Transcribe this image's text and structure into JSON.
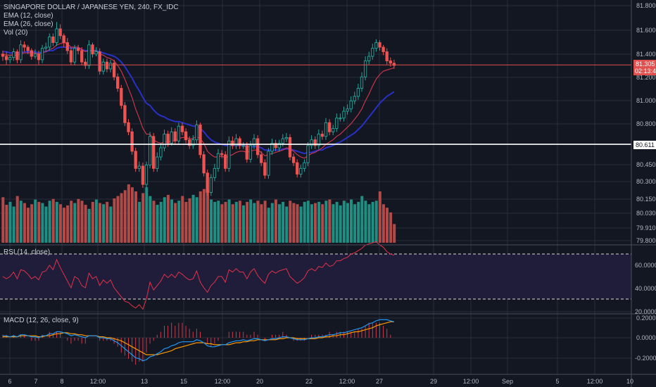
{
  "colors": {
    "background": "#131722",
    "grid": "#2a2e39",
    "up": "#26a69a",
    "down": "#ef5350",
    "vol_up": "#1f8f84",
    "vol_down": "#b24a48",
    "ema12": "#e53950",
    "ema26": "#2830c8",
    "rsi": "#e5304a",
    "macd": "#2196f3",
    "signal": "#ff9800",
    "hist": "#e53950",
    "price_line": "#e0504e",
    "support_line": "#ffffff"
  },
  "header": {
    "title": "SINGAPORE DOLLAR / JAPANESE YEN, 240, FX_IDC",
    "indicators": [
      "EMA (12, close)",
      "EMA (26, close)",
      "Vol (20)"
    ]
  },
  "rsi_panel": {
    "label": "RSI (14, close)",
    "ticks": [
      "60.0000",
      "40.0000",
      "20.0000"
    ],
    "upper_band": 70,
    "lower_band": 30
  },
  "macd_panel": {
    "label": "MACD (12, 26, close, 9)",
    "ticks": [
      "0.2000",
      "0.0000",
      "-0.2000"
    ]
  },
  "price_axis": {
    "ticks": [
      "81.800",
      "81.600",
      "81.400",
      "81.200",
      "81.000",
      "80.800",
      "80.450",
      "80.300",
      "80.150",
      "80.030",
      "79.910",
      "79.800"
    ],
    "current_price": "81.305",
    "countdown": "02:13:40",
    "support_level": "80.611"
  },
  "time_axis": {
    "labels": [
      "6",
      "7",
      "8",
      "12:00",
      "13",
      "15",
      "12:00",
      "20",
      "22",
      "12:00",
      "27",
      "29",
      "12:00",
      "Sep",
      "5",
      "12:00",
      "10"
    ]
  },
  "chart_data": {
    "type": "candlestick",
    "title": "SINGAPORE DOLLAR / JAPANESE YEN, 240, FX_IDC",
    "interval": "240",
    "ylim": [
      79.75,
      81.86
    ],
    "candles": {
      "open": [
        81.4,
        81.38,
        81.35,
        81.37,
        81.42,
        81.35,
        81.48,
        81.46,
        81.43,
        81.38,
        81.4,
        81.35,
        81.45,
        81.46,
        81.55,
        81.5,
        81.62,
        81.56,
        81.5,
        81.43,
        81.33,
        81.45,
        81.43,
        81.33,
        81.3,
        81.48,
        81.4,
        81.42,
        81.25,
        81.33,
        81.27,
        81.32,
        81.2,
        81.1,
        80.95,
        80.8,
        80.72,
        80.55,
        80.4,
        80.42,
        80.26,
        80.43,
        80.68,
        80.4,
        80.5,
        80.58,
        80.7,
        80.62,
        80.72,
        80.64,
        80.77,
        80.72,
        80.65,
        80.6,
        80.65,
        80.78,
        80.52,
        80.36,
        80.19,
        80.32,
        80.4,
        80.53,
        80.52,
        80.4,
        80.64,
        80.6,
        80.66,
        80.6,
        80.6,
        80.48,
        80.6,
        80.66,
        80.52,
        80.45,
        80.34,
        80.55,
        80.62,
        80.58,
        80.62,
        80.66,
        80.67,
        80.5,
        80.45,
        80.35,
        80.4,
        80.45,
        80.6,
        80.65,
        80.6,
        80.7,
        80.68,
        80.8,
        80.72,
        80.75,
        80.84,
        80.84,
        80.9,
        80.92,
        80.99,
        81.03,
        81.1,
        81.2,
        81.34,
        81.38,
        81.45,
        81.5,
        81.46,
        81.42,
        81.34,
        81.32
      ],
      "close": [
        81.38,
        81.35,
        81.37,
        81.42,
        81.35,
        81.48,
        81.46,
        81.43,
        81.38,
        81.4,
        81.35,
        81.45,
        81.46,
        81.55,
        81.5,
        81.62,
        81.56,
        81.5,
        81.43,
        81.33,
        81.45,
        81.43,
        81.33,
        81.3,
        81.48,
        81.4,
        81.42,
        81.25,
        81.33,
        81.27,
        81.32,
        81.2,
        81.1,
        80.95,
        80.8,
        80.72,
        80.55,
        80.4,
        80.42,
        80.26,
        80.43,
        80.68,
        80.4,
        80.5,
        80.58,
        80.7,
        80.62,
        80.72,
        80.64,
        80.77,
        80.72,
        80.65,
        80.6,
        80.65,
        80.78,
        80.52,
        80.36,
        80.19,
        80.32,
        80.4,
        80.53,
        80.52,
        80.4,
        80.64,
        80.6,
        80.66,
        80.6,
        80.6,
        80.48,
        80.6,
        80.66,
        80.52,
        80.45,
        80.34,
        80.55,
        80.62,
        80.58,
        80.62,
        80.66,
        80.67,
        80.5,
        80.45,
        80.35,
        80.4,
        80.45,
        80.6,
        80.65,
        80.6,
        80.7,
        80.68,
        80.8,
        80.72,
        80.75,
        80.84,
        80.84,
        80.9,
        80.92,
        80.99,
        81.03,
        81.1,
        81.2,
        81.34,
        81.38,
        81.45,
        81.5,
        81.46,
        81.42,
        81.34,
        81.32,
        81.3
      ],
      "high": [
        81.43,
        81.42,
        81.39,
        81.45,
        81.44,
        81.52,
        81.51,
        81.48,
        81.45,
        81.44,
        81.43,
        81.48,
        81.5,
        81.58,
        81.58,
        81.68,
        81.66,
        81.58,
        81.54,
        81.46,
        81.48,
        81.48,
        81.46,
        81.36,
        81.52,
        81.5,
        81.46,
        81.45,
        81.36,
        81.36,
        81.35,
        81.35,
        81.23,
        81.13,
        80.98,
        80.83,
        80.75,
        80.58,
        80.46,
        80.45,
        80.46,
        80.72,
        80.71,
        80.54,
        80.62,
        80.74,
        80.73,
        80.76,
        80.75,
        80.8,
        80.8,
        80.75,
        80.68,
        80.69,
        80.82,
        80.8,
        80.55,
        80.39,
        80.35,
        80.44,
        80.57,
        80.56,
        80.55,
        80.68,
        80.68,
        80.7,
        80.68,
        80.63,
        80.63,
        80.64,
        80.7,
        80.69,
        80.55,
        80.48,
        80.58,
        80.66,
        80.65,
        80.65,
        80.7,
        80.71,
        80.7,
        80.53,
        80.48,
        80.43,
        80.48,
        80.63,
        80.69,
        80.68,
        80.74,
        80.73,
        80.84,
        80.83,
        80.78,
        80.88,
        80.88,
        80.94,
        80.96,
        81.03,
        81.07,
        81.14,
        81.24,
        81.38,
        81.42,
        81.49,
        81.53,
        81.52,
        81.48,
        81.45,
        81.37,
        81.35
      ],
      "low": [
        81.34,
        81.31,
        81.32,
        81.34,
        81.32,
        81.32,
        81.42,
        81.4,
        81.35,
        81.36,
        81.31,
        81.32,
        81.42,
        81.43,
        81.47,
        81.47,
        81.53,
        81.46,
        81.4,
        81.3,
        81.3,
        81.4,
        81.3,
        81.27,
        81.27,
        81.37,
        81.38,
        81.22,
        81.22,
        81.24,
        81.24,
        81.17,
        81.07,
        80.92,
        80.77,
        80.69,
        80.52,
        80.37,
        80.37,
        80.23,
        80.23,
        80.4,
        80.37,
        80.37,
        80.47,
        80.55,
        80.59,
        80.6,
        80.61,
        80.61,
        80.69,
        80.62,
        80.57,
        80.57,
        80.62,
        80.49,
        80.33,
        80.16,
        80.16,
        80.29,
        80.37,
        80.49,
        80.37,
        80.37,
        80.57,
        80.57,
        80.57,
        80.57,
        80.45,
        80.45,
        80.57,
        80.49,
        80.42,
        80.31,
        80.31,
        80.52,
        80.55,
        80.55,
        80.59,
        80.63,
        80.47,
        80.42,
        80.32,
        80.32,
        80.37,
        80.42,
        80.57,
        80.57,
        80.57,
        80.65,
        80.65,
        80.69,
        80.69,
        80.72,
        80.81,
        80.81,
        80.87,
        80.89,
        80.96,
        81.0,
        81.07,
        81.17,
        81.31,
        81.35,
        81.42,
        81.43,
        81.39,
        81.31,
        81.29,
        81.27
      ]
    },
    "volume": [
      0.78,
      0.65,
      0.7,
      0.62,
      0.8,
      0.72,
      0.68,
      0.6,
      0.66,
      0.74,
      0.7,
      0.68,
      0.62,
      0.72,
      0.75,
      0.7,
      0.66,
      0.6,
      0.64,
      0.72,
      0.68,
      0.75,
      0.72,
      0.65,
      0.58,
      0.7,
      0.74,
      0.68,
      0.66,
      0.7,
      0.62,
      0.76,
      0.8,
      0.85,
      0.9,
      1.0,
      0.95,
      0.88,
      0.7,
      0.85,
      0.95,
      0.8,
      0.72,
      0.65,
      0.7,
      0.78,
      0.82,
      0.74,
      0.68,
      0.72,
      0.8,
      0.7,
      0.76,
      0.82,
      0.78,
      0.88,
      0.92,
      0.9,
      0.74,
      0.7,
      0.72,
      0.66,
      0.7,
      0.74,
      0.66,
      0.7,
      0.72,
      0.64,
      0.7,
      0.74,
      0.68,
      0.72,
      0.66,
      0.72,
      0.6,
      0.68,
      0.74,
      0.66,
      0.7,
      0.62,
      0.72,
      0.68,
      0.66,
      0.62,
      0.7,
      0.72,
      0.66,
      0.68,
      0.7,
      0.66,
      0.72,
      0.74,
      0.66,
      0.7,
      0.64,
      0.72,
      0.68,
      0.74,
      0.66,
      0.7,
      0.8,
      0.72,
      0.66,
      0.7,
      0.72,
      0.88,
      0.66,
      0.6,
      0.52,
      0.32
    ],
    "rsi": [
      50,
      48,
      50,
      54,
      48,
      56,
      55,
      52,
      48,
      50,
      47,
      54,
      55,
      60,
      56,
      65,
      58,
      52,
      46,
      40,
      50,
      48,
      42,
      40,
      53,
      48,
      50,
      42,
      47,
      44,
      47,
      40,
      36,
      32,
      28,
      27,
      24,
      22,
      25,
      21,
      30,
      45,
      38,
      42,
      46,
      52,
      49,
      52,
      49,
      54,
      52,
      49,
      47,
      48,
      55,
      45,
      40,
      36,
      42,
      45,
      50,
      50,
      45,
      56,
      54,
      57,
      54,
      54,
      48,
      54,
      57,
      51,
      47,
      44,
      52,
      55,
      53,
      55,
      56,
      57,
      50,
      47,
      44,
      46,
      49,
      55,
      57,
      55,
      59,
      58,
      62,
      59,
      60,
      64,
      64,
      66,
      67,
      70,
      71,
      73,
      75,
      78,
      79,
      80,
      81,
      78,
      76,
      72,
      70,
      69
    ],
    "macd": [
      0.02,
      0.02,
      0.01,
      0.02,
      0.01,
      0.03,
      0.03,
      0.02,
      0.01,
      0.01,
      0.0,
      0.02,
      0.02,
      0.04,
      0.04,
      0.06,
      0.06,
      0.05,
      0.04,
      0.02,
      0.03,
      0.02,
      0.01,
      0.0,
      0.02,
      0.02,
      0.02,
      0.0,
      0.0,
      -0.01,
      -0.01,
      -0.03,
      -0.05,
      -0.08,
      -0.11,
      -0.14,
      -0.17,
      -0.2,
      -0.21,
      -0.23,
      -0.22,
      -0.19,
      -0.18,
      -0.16,
      -0.14,
      -0.11,
      -0.1,
      -0.08,
      -0.07,
      -0.05,
      -0.04,
      -0.04,
      -0.04,
      -0.04,
      -0.02,
      -0.03,
      -0.05,
      -0.08,
      -0.09,
      -0.09,
      -0.08,
      -0.07,
      -0.07,
      -0.05,
      -0.04,
      -0.03,
      -0.03,
      -0.02,
      -0.03,
      -0.02,
      -0.01,
      -0.01,
      -0.02,
      -0.03,
      -0.02,
      -0.01,
      -0.01,
      0.0,
      0.01,
      0.01,
      0.0,
      -0.01,
      -0.02,
      -0.02,
      -0.02,
      -0.01,
      0.0,
      0.0,
      0.01,
      0.01,
      0.02,
      0.03,
      0.03,
      0.04,
      0.05,
      0.05,
      0.06,
      0.07,
      0.08,
      0.09,
      0.1,
      0.12,
      0.14,
      0.15,
      0.17,
      0.18,
      0.18,
      0.18,
      0.17,
      0.16
    ],
    "signal": [
      0.01,
      0.01,
      0.01,
      0.01,
      0.01,
      0.02,
      0.02,
      0.02,
      0.02,
      0.02,
      0.01,
      0.01,
      0.02,
      0.02,
      0.03,
      0.04,
      0.04,
      0.05,
      0.05,
      0.04,
      0.04,
      0.03,
      0.03,
      0.02,
      0.02,
      0.02,
      0.02,
      0.01,
      0.01,
      0.0,
      0.0,
      -0.01,
      -0.02,
      -0.03,
      -0.05,
      -0.07,
      -0.09,
      -0.11,
      -0.13,
      -0.15,
      -0.17,
      -0.17,
      -0.17,
      -0.17,
      -0.16,
      -0.15,
      -0.14,
      -0.13,
      -0.11,
      -0.1,
      -0.09,
      -0.08,
      -0.07,
      -0.06,
      -0.05,
      -0.05,
      -0.05,
      -0.06,
      -0.06,
      -0.07,
      -0.07,
      -0.07,
      -0.07,
      -0.07,
      -0.06,
      -0.05,
      -0.05,
      -0.04,
      -0.04,
      -0.03,
      -0.03,
      -0.02,
      -0.02,
      -0.02,
      -0.02,
      -0.02,
      -0.02,
      -0.01,
      -0.01,
      0.0,
      0.0,
      0.0,
      -0.01,
      -0.01,
      -0.01,
      -0.01,
      -0.01,
      -0.01,
      0.0,
      0.0,
      0.01,
      0.01,
      0.02,
      0.02,
      0.03,
      0.03,
      0.04,
      0.05,
      0.06,
      0.06,
      0.07,
      0.08,
      0.09,
      0.1,
      0.12,
      0.13,
      0.14,
      0.15,
      0.16,
      0.16
    ],
    "ema12": [
      81.4,
      81.39,
      81.39,
      81.39,
      81.39,
      81.4,
      81.41,
      81.41,
      81.41,
      81.41,
      81.4,
      81.41,
      81.42,
      81.44,
      81.45,
      81.48,
      81.49,
      81.5,
      81.49,
      81.46,
      81.46,
      81.46,
      81.44,
      81.42,
      81.43,
      81.43,
      81.43,
      81.4,
      81.39,
      81.37,
      81.36,
      81.34,
      81.3,
      81.25,
      81.18,
      81.1,
      81.02,
      80.92,
      80.84,
      80.75,
      80.7,
      80.7,
      80.65,
      80.63,
      80.62,
      80.63,
      80.63,
      80.64,
      80.64,
      80.66,
      80.67,
      80.67,
      80.66,
      80.66,
      80.68,
      80.66,
      80.62,
      80.55,
      80.52,
      80.5,
      80.5,
      80.51,
      80.49,
      80.51,
      80.52,
      80.54,
      80.55,
      80.55,
      80.54,
      80.55,
      80.56,
      80.56,
      80.54,
      80.51,
      80.52,
      80.53,
      80.54,
      80.55,
      80.56,
      80.58,
      80.57,
      80.55,
      80.52,
      80.5,
      80.49,
      80.51,
      80.53,
      80.54,
      80.56,
      80.58,
      80.61,
      80.63,
      80.65,
      80.68,
      80.7,
      80.73,
      80.76,
      80.79,
      80.83,
      80.87,
      80.92,
      80.99,
      81.05,
      81.12,
      81.18,
      81.22,
      81.25,
      81.26,
      81.27,
      81.28
    ],
    "ema26": [
      81.42,
      81.42,
      81.41,
      81.41,
      81.41,
      81.41,
      81.42,
      81.42,
      81.42,
      81.42,
      81.41,
      81.42,
      81.42,
      81.43,
      81.43,
      81.45,
      81.46,
      81.46,
      81.46,
      81.45,
      81.45,
      81.45,
      81.44,
      81.43,
      81.43,
      81.43,
      81.43,
      81.42,
      81.41,
      81.4,
      81.39,
      81.38,
      81.36,
      81.33,
      81.29,
      81.24,
      81.19,
      81.13,
      81.08,
      81.02,
      80.97,
      80.95,
      80.91,
      80.88,
      80.86,
      80.85,
      80.83,
      80.82,
      80.81,
      80.81,
      80.8,
      80.79,
      80.78,
      80.77,
      80.77,
      80.75,
      80.72,
      80.68,
      80.65,
      80.63,
      80.62,
      80.61,
      80.6,
      80.6,
      80.6,
      80.6,
      80.6,
      80.6,
      80.59,
      80.59,
      80.59,
      80.59,
      80.58,
      80.56,
      80.56,
      80.56,
      80.56,
      80.56,
      80.57,
      80.57,
      80.57,
      80.56,
      80.55,
      80.54,
      80.53,
      80.54,
      80.54,
      80.55,
      80.56,
      80.56,
      80.58,
      80.59,
      80.6,
      80.62,
      80.63,
      80.65,
      80.67,
      80.69,
      80.71,
      80.74,
      80.77,
      80.81,
      80.85,
      80.89,
      80.93,
      80.97,
      81.0,
      81.03,
      81.05,
      81.07
    ]
  }
}
